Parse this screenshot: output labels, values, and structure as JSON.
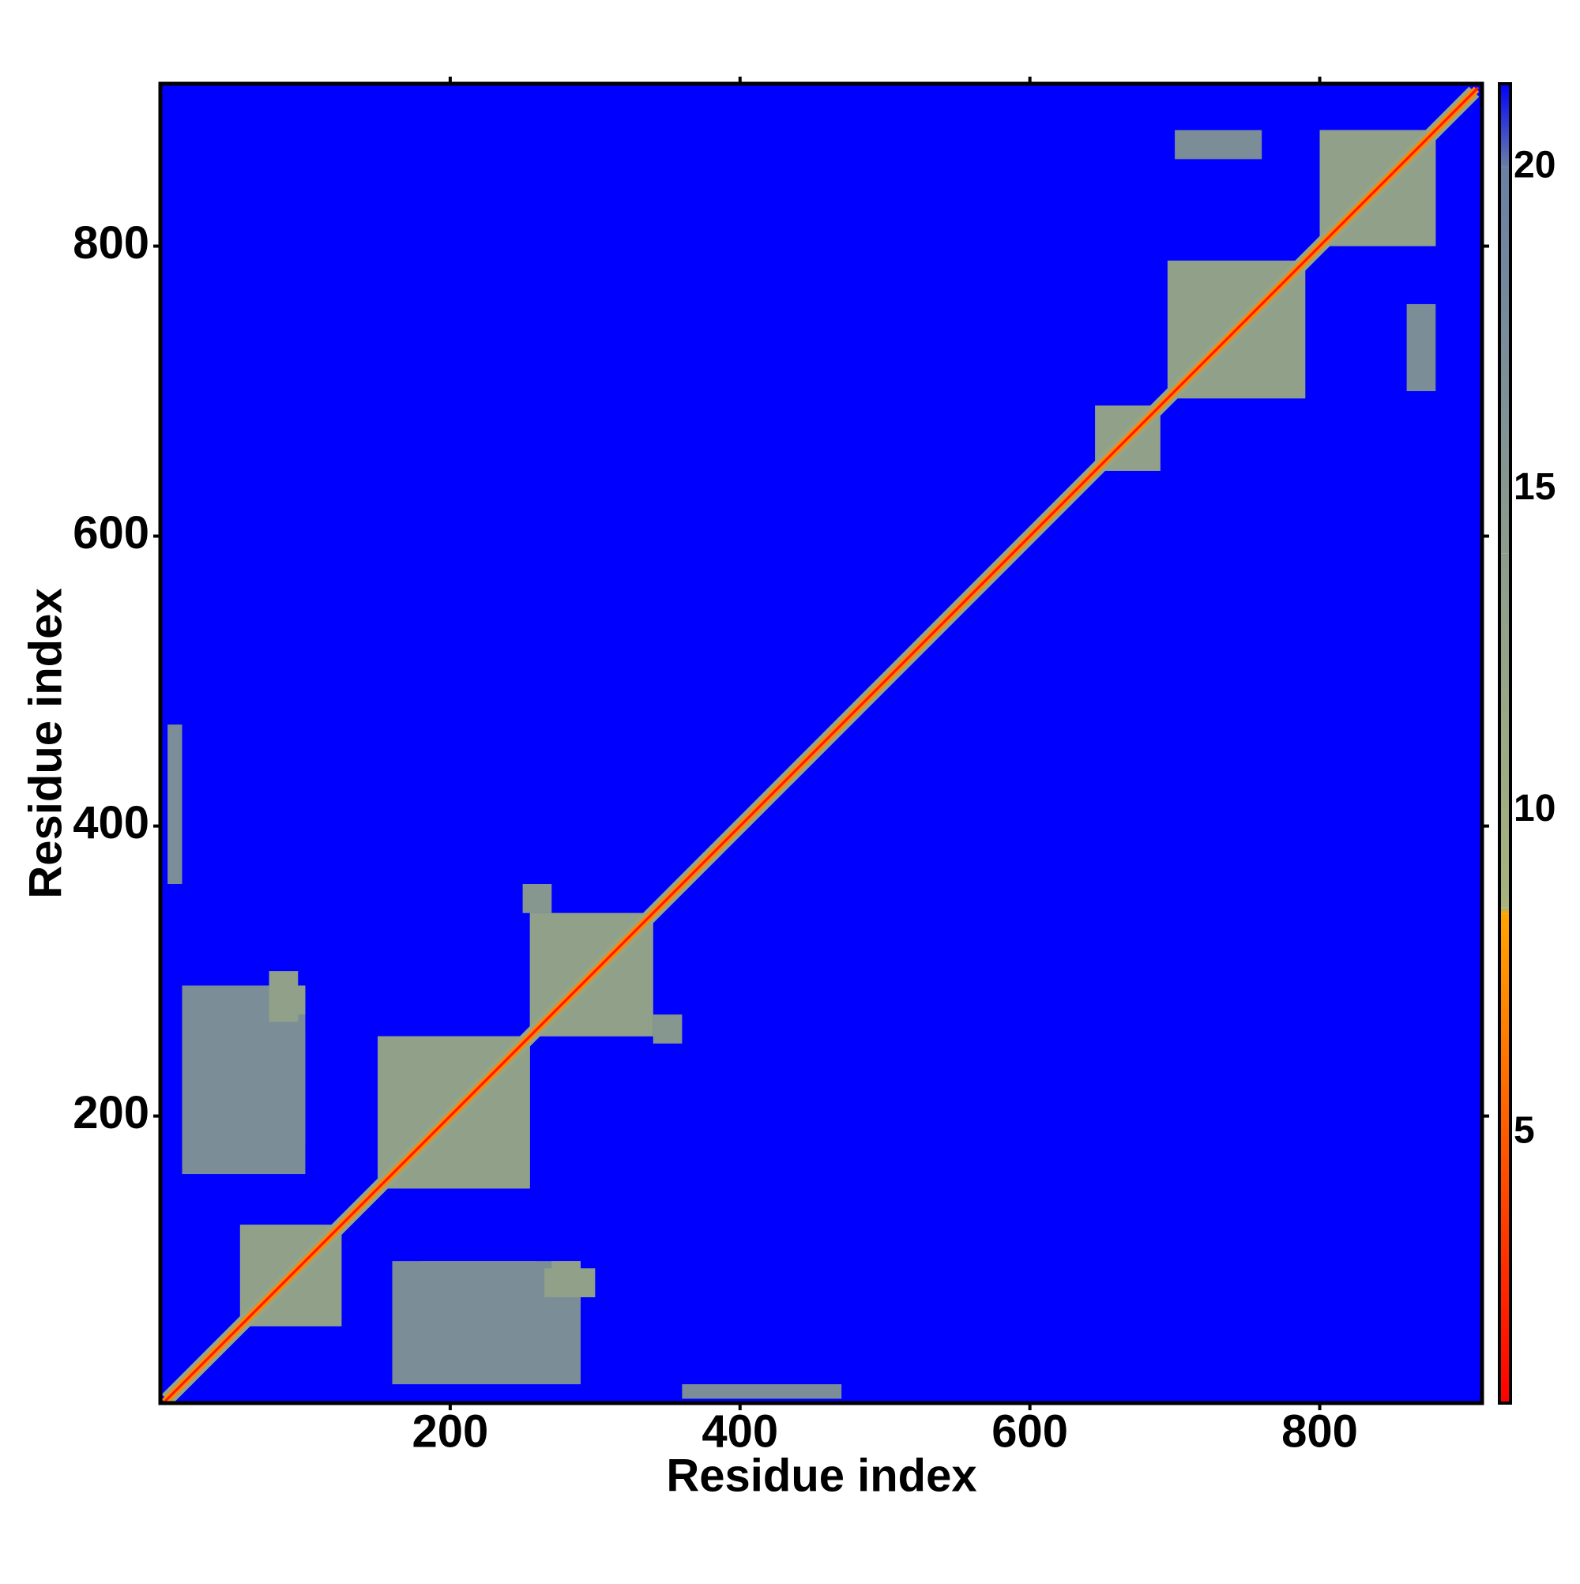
{
  "chart_data": {
    "type": "heatmap",
    "xlabel": "Residue index",
    "ylabel": "Residue index",
    "xlim": [
      0,
      912
    ],
    "ylim": [
      2,
      912
    ],
    "xticks": [
      200,
      400,
      600,
      800
    ],
    "yticks": [
      200,
      400,
      600,
      800
    ],
    "zlim": [
      0.8,
      21.3
    ],
    "zticks": [
      5,
      10,
      15,
      20
    ],
    "colorscale": [
      {
        "value": 0.8,
        "color": "#ff0000"
      },
      {
        "value": 8.4,
        "color": "#ffa500"
      },
      {
        "value": 8.5,
        "color": "#a8b47c"
      },
      {
        "value": 14,
        "color": "#8c9c8c"
      },
      {
        "value": 20,
        "color": "#6a80a4"
      },
      {
        "value": 21.3,
        "color": "#0000ff"
      }
    ],
    "background_value": 21.3,
    "residues": [
      1,
      910
    ],
    "diagonal": [
      {
        "halfwidth": 7,
        "value": 12
      },
      {
        "halfwidth": 3.5,
        "value": 7
      },
      {
        "halfwidth": 1.2,
        "value": 2
      }
    ],
    "patches": [
      {
        "x": [
          55,
          125
        ],
        "y": [
          55,
          125
        ],
        "value": 13
      },
      {
        "x": [
          150,
          255
        ],
        "y": [
          150,
          255
        ],
        "value": 13
      },
      {
        "x": [
          255,
          340
        ],
        "y": [
          255,
          340
        ],
        "value": 13
      },
      {
        "x": [
          645,
          690
        ],
        "y": [
          645,
          690
        ],
        "value": 13
      },
      {
        "x": [
          695,
          790
        ],
        "y": [
          695,
          790
        ],
        "value": 13
      },
      {
        "x": [
          800,
          880
        ],
        "y": [
          800,
          880
        ],
        "value": 13
      },
      {
        "x": [
          15,
          100
        ],
        "y": [
          160,
          290
        ],
        "value": 17
      },
      {
        "x": [
          80,
          100
        ],
        "y": [
          270,
          290
        ],
        "value": 13
      },
      {
        "x": [
          180,
          260
        ],
        "y": [
          35,
          100
        ],
        "value": 17
      },
      {
        "x": [
          265,
          300
        ],
        "y": [
          75,
          95
        ],
        "value": 13
      },
      {
        "x": [
          700,
          760
        ],
        "y": [
          860,
          880
        ],
        "value": 17
      },
      {
        "x": [
          340,
          360
        ],
        "y": [
          250,
          270
        ],
        "value": 15
      },
      {
        "x": [
          5,
          15
        ],
        "y": [
          360,
          470
        ],
        "value": 17
      }
    ]
  }
}
